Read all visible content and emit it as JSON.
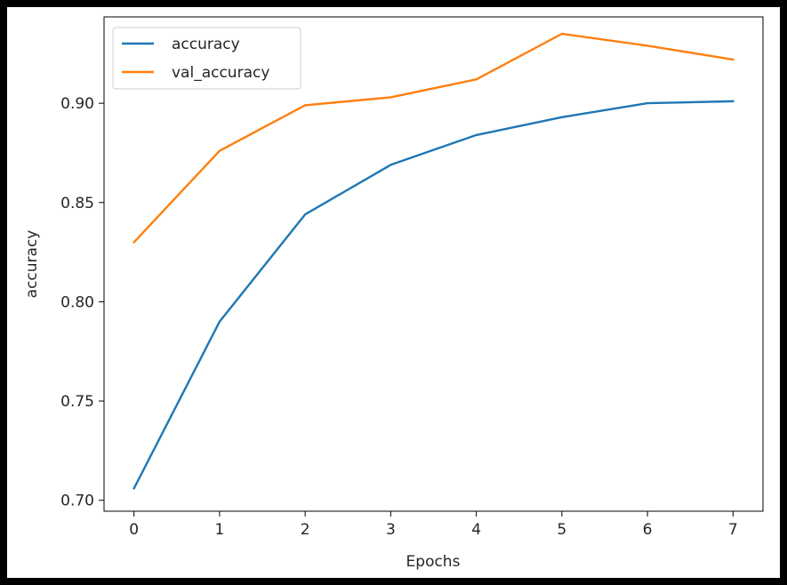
{
  "chart_data": {
    "type": "line",
    "title": "",
    "xlabel": "Epochs",
    "ylabel": "accuracy",
    "x": [
      0,
      1,
      2,
      3,
      4,
      5,
      6,
      7
    ],
    "xlim": [
      -0.35,
      7.35
    ],
    "ylim": [
      0.6945,
      0.9435
    ],
    "xticks": [
      "0",
      "1",
      "2",
      "3",
      "4",
      "5",
      "6",
      "7"
    ],
    "yticks": [
      0.7,
      0.75,
      0.8,
      0.85,
      0.9
    ],
    "ytick_labels": [
      "0.70",
      "0.75",
      "0.80",
      "0.85",
      "0.90"
    ],
    "grid": false,
    "legend": "top-left",
    "series": [
      {
        "name": "accuracy",
        "color": "#1f77b4",
        "values": [
          0.706,
          0.79,
          0.844,
          0.869,
          0.884,
          0.893,
          0.9,
          0.901
        ]
      },
      {
        "name": "val_accuracy",
        "color": "#ff7f0e",
        "values": [
          0.83,
          0.876,
          0.899,
          0.903,
          0.912,
          0.935,
          0.929,
          0.922
        ]
      }
    ]
  }
}
